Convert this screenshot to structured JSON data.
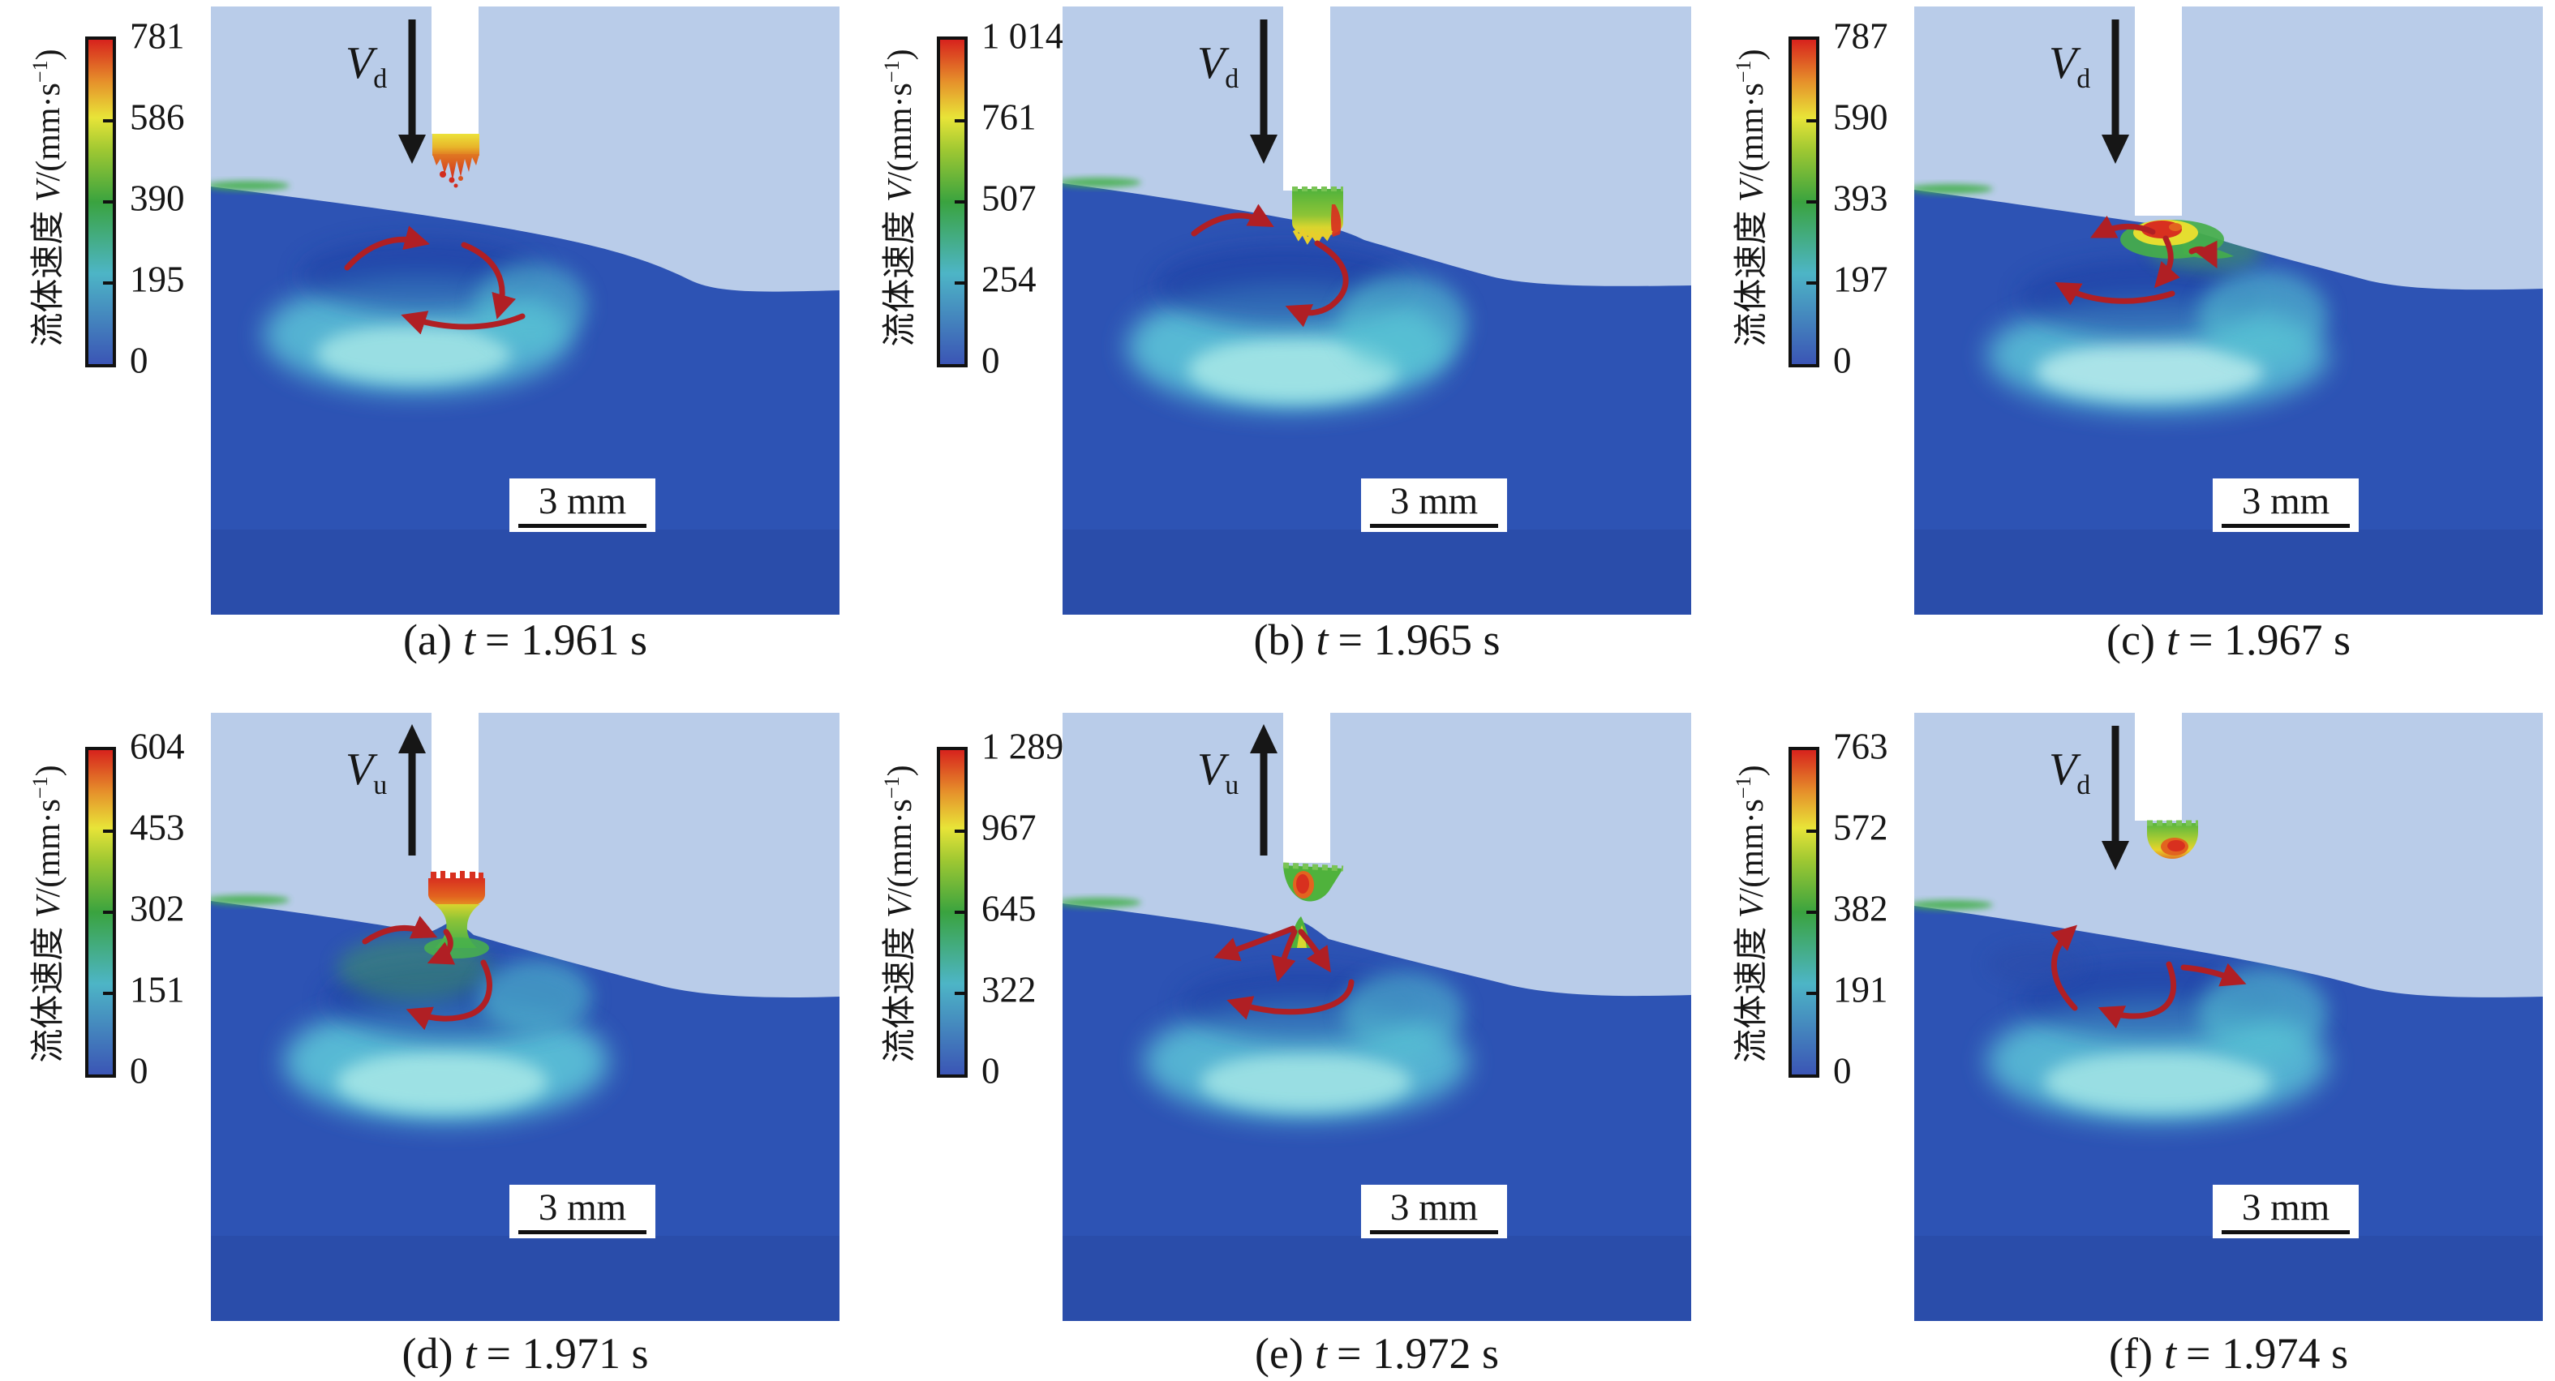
{
  "figure": {
    "colorbar_label": {
      "zh": "流体速度",
      "var": "V",
      "unit_prefix": "/(mm·s",
      "unit_sup": "−1",
      "unit_suffix": ")"
    },
    "scale_bar_label": "3 mm",
    "colors": {
      "background_gas": "#b9cce9",
      "pool_blue": "#2d53b4",
      "swirl_cyan": "#5ecbda",
      "flow_arrow_red": "#b01f24",
      "colorbar_top_red": "#d7231d",
      "colorbar_bottom_blue": "#3b55b5"
    },
    "panels": [
      {
        "id": "a",
        "caption_prefix": "(a)",
        "caption_var": "t",
        "caption_rest": "= 1.961 s",
        "arrow": {
          "var": "V",
          "sub": "d",
          "direction": "down"
        },
        "colorbar_ticks": [
          "781",
          "586",
          "390",
          "195",
          "0"
        ],
        "droplet_state": "droplet-forming-at-wire-tip"
      },
      {
        "id": "b",
        "caption_prefix": "(b)",
        "caption_var": "t",
        "caption_rest": "= 1.965 s",
        "arrow": {
          "var": "V",
          "sub": "d",
          "direction": "down"
        },
        "colorbar_ticks": [
          "1 014",
          "761",
          "507",
          "254",
          "0"
        ],
        "droplet_state": "droplet-contacting-pool"
      },
      {
        "id": "c",
        "caption_prefix": "(c)",
        "caption_var": "t",
        "caption_rest": "= 1.967 s",
        "arrow": {
          "var": "V",
          "sub": "d",
          "direction": "down"
        },
        "colorbar_ticks": [
          "787",
          "590",
          "393",
          "197",
          "0"
        ],
        "droplet_state": "droplet-merging-into-pool"
      },
      {
        "id": "d",
        "caption_prefix": "(d)",
        "caption_var": "t",
        "caption_rest": "= 1.971 s",
        "arrow": {
          "var": "V",
          "sub": "u",
          "direction": "up"
        },
        "colorbar_ticks": [
          "604",
          "453",
          "302",
          "151",
          "0"
        ],
        "droplet_state": "liquid-bridge-necking"
      },
      {
        "id": "e",
        "caption_prefix": "(e)",
        "caption_var": "t",
        "caption_rest": "= 1.972 s",
        "arrow": {
          "var": "V",
          "sub": "u",
          "direction": "up"
        },
        "colorbar_ticks": [
          "1 289",
          "967",
          "645",
          "322",
          "0"
        ],
        "droplet_state": "droplet-detached"
      },
      {
        "id": "f",
        "caption_prefix": "(f)",
        "caption_var": "t",
        "caption_rest": "= 1.974 s",
        "arrow": {
          "var": "V",
          "sub": "d",
          "direction": "down"
        },
        "colorbar_ticks": [
          "763",
          "572",
          "382",
          "191",
          "0"
        ],
        "droplet_state": "new-droplet-at-wire-tip"
      }
    ]
  }
}
